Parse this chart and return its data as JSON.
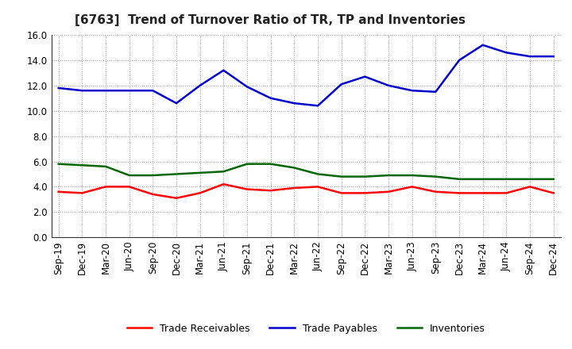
{
  "title": "[6763]  Trend of Turnover Ratio of TR, TP and Inventories",
  "x_labels": [
    "Sep-19",
    "Dec-19",
    "Mar-20",
    "Jun-20",
    "Sep-20",
    "Dec-20",
    "Mar-21",
    "Jun-21",
    "Sep-21",
    "Dec-21",
    "Mar-22",
    "Jun-22",
    "Sep-22",
    "Dec-22",
    "Mar-23",
    "Jun-23",
    "Sep-23",
    "Dec-23",
    "Mar-24",
    "Jun-24",
    "Sep-24",
    "Dec-24"
  ],
  "trade_payables": [
    11.8,
    11.6,
    11.6,
    11.6,
    11.6,
    10.6,
    12.0,
    13.2,
    11.9,
    11.0,
    10.6,
    10.4,
    12.1,
    12.7,
    12.0,
    11.6,
    11.5,
    14.0,
    15.2,
    14.6,
    14.3,
    14.3
  ],
  "trade_receivables": [
    3.6,
    3.5,
    4.0,
    4.0,
    3.4,
    3.1,
    3.5,
    4.2,
    3.8,
    3.7,
    3.9,
    4.0,
    3.5,
    3.5,
    3.6,
    4.0,
    3.6,
    3.5,
    3.5,
    3.5,
    4.0,
    3.5
  ],
  "inventories": [
    5.8,
    5.7,
    5.6,
    4.9,
    4.9,
    5.0,
    5.1,
    5.2,
    5.8,
    5.8,
    5.5,
    5.0,
    4.8,
    4.8,
    4.9,
    4.9,
    4.8,
    4.6,
    4.6,
    4.6,
    4.6,
    4.6
  ],
  "ylim": [
    0.0,
    16.0
  ],
  "yticks": [
    0.0,
    2.0,
    4.0,
    6.0,
    8.0,
    10.0,
    12.0,
    14.0,
    16.0
  ],
  "ytick_labels": [
    "0.0",
    "2.0",
    "4.0",
    "6.0",
    "8.0",
    "10.0",
    "12.0",
    "14.0",
    "16.0"
  ],
  "color_tr": "#ff0000",
  "color_tp": "#0000cc",
  "color_inv": "#006600",
  "legend_tr": "Trade Receivables",
  "legend_tp": "Trade Payables",
  "legend_inv": "Inventories",
  "bg_color": "#ffffff",
  "plot_bg_color": "#ffffff",
  "grid_color": "#999999",
  "linewidth": 1.8,
  "title_fontsize": 11,
  "tick_fontsize": 8.5,
  "legend_fontsize": 9
}
